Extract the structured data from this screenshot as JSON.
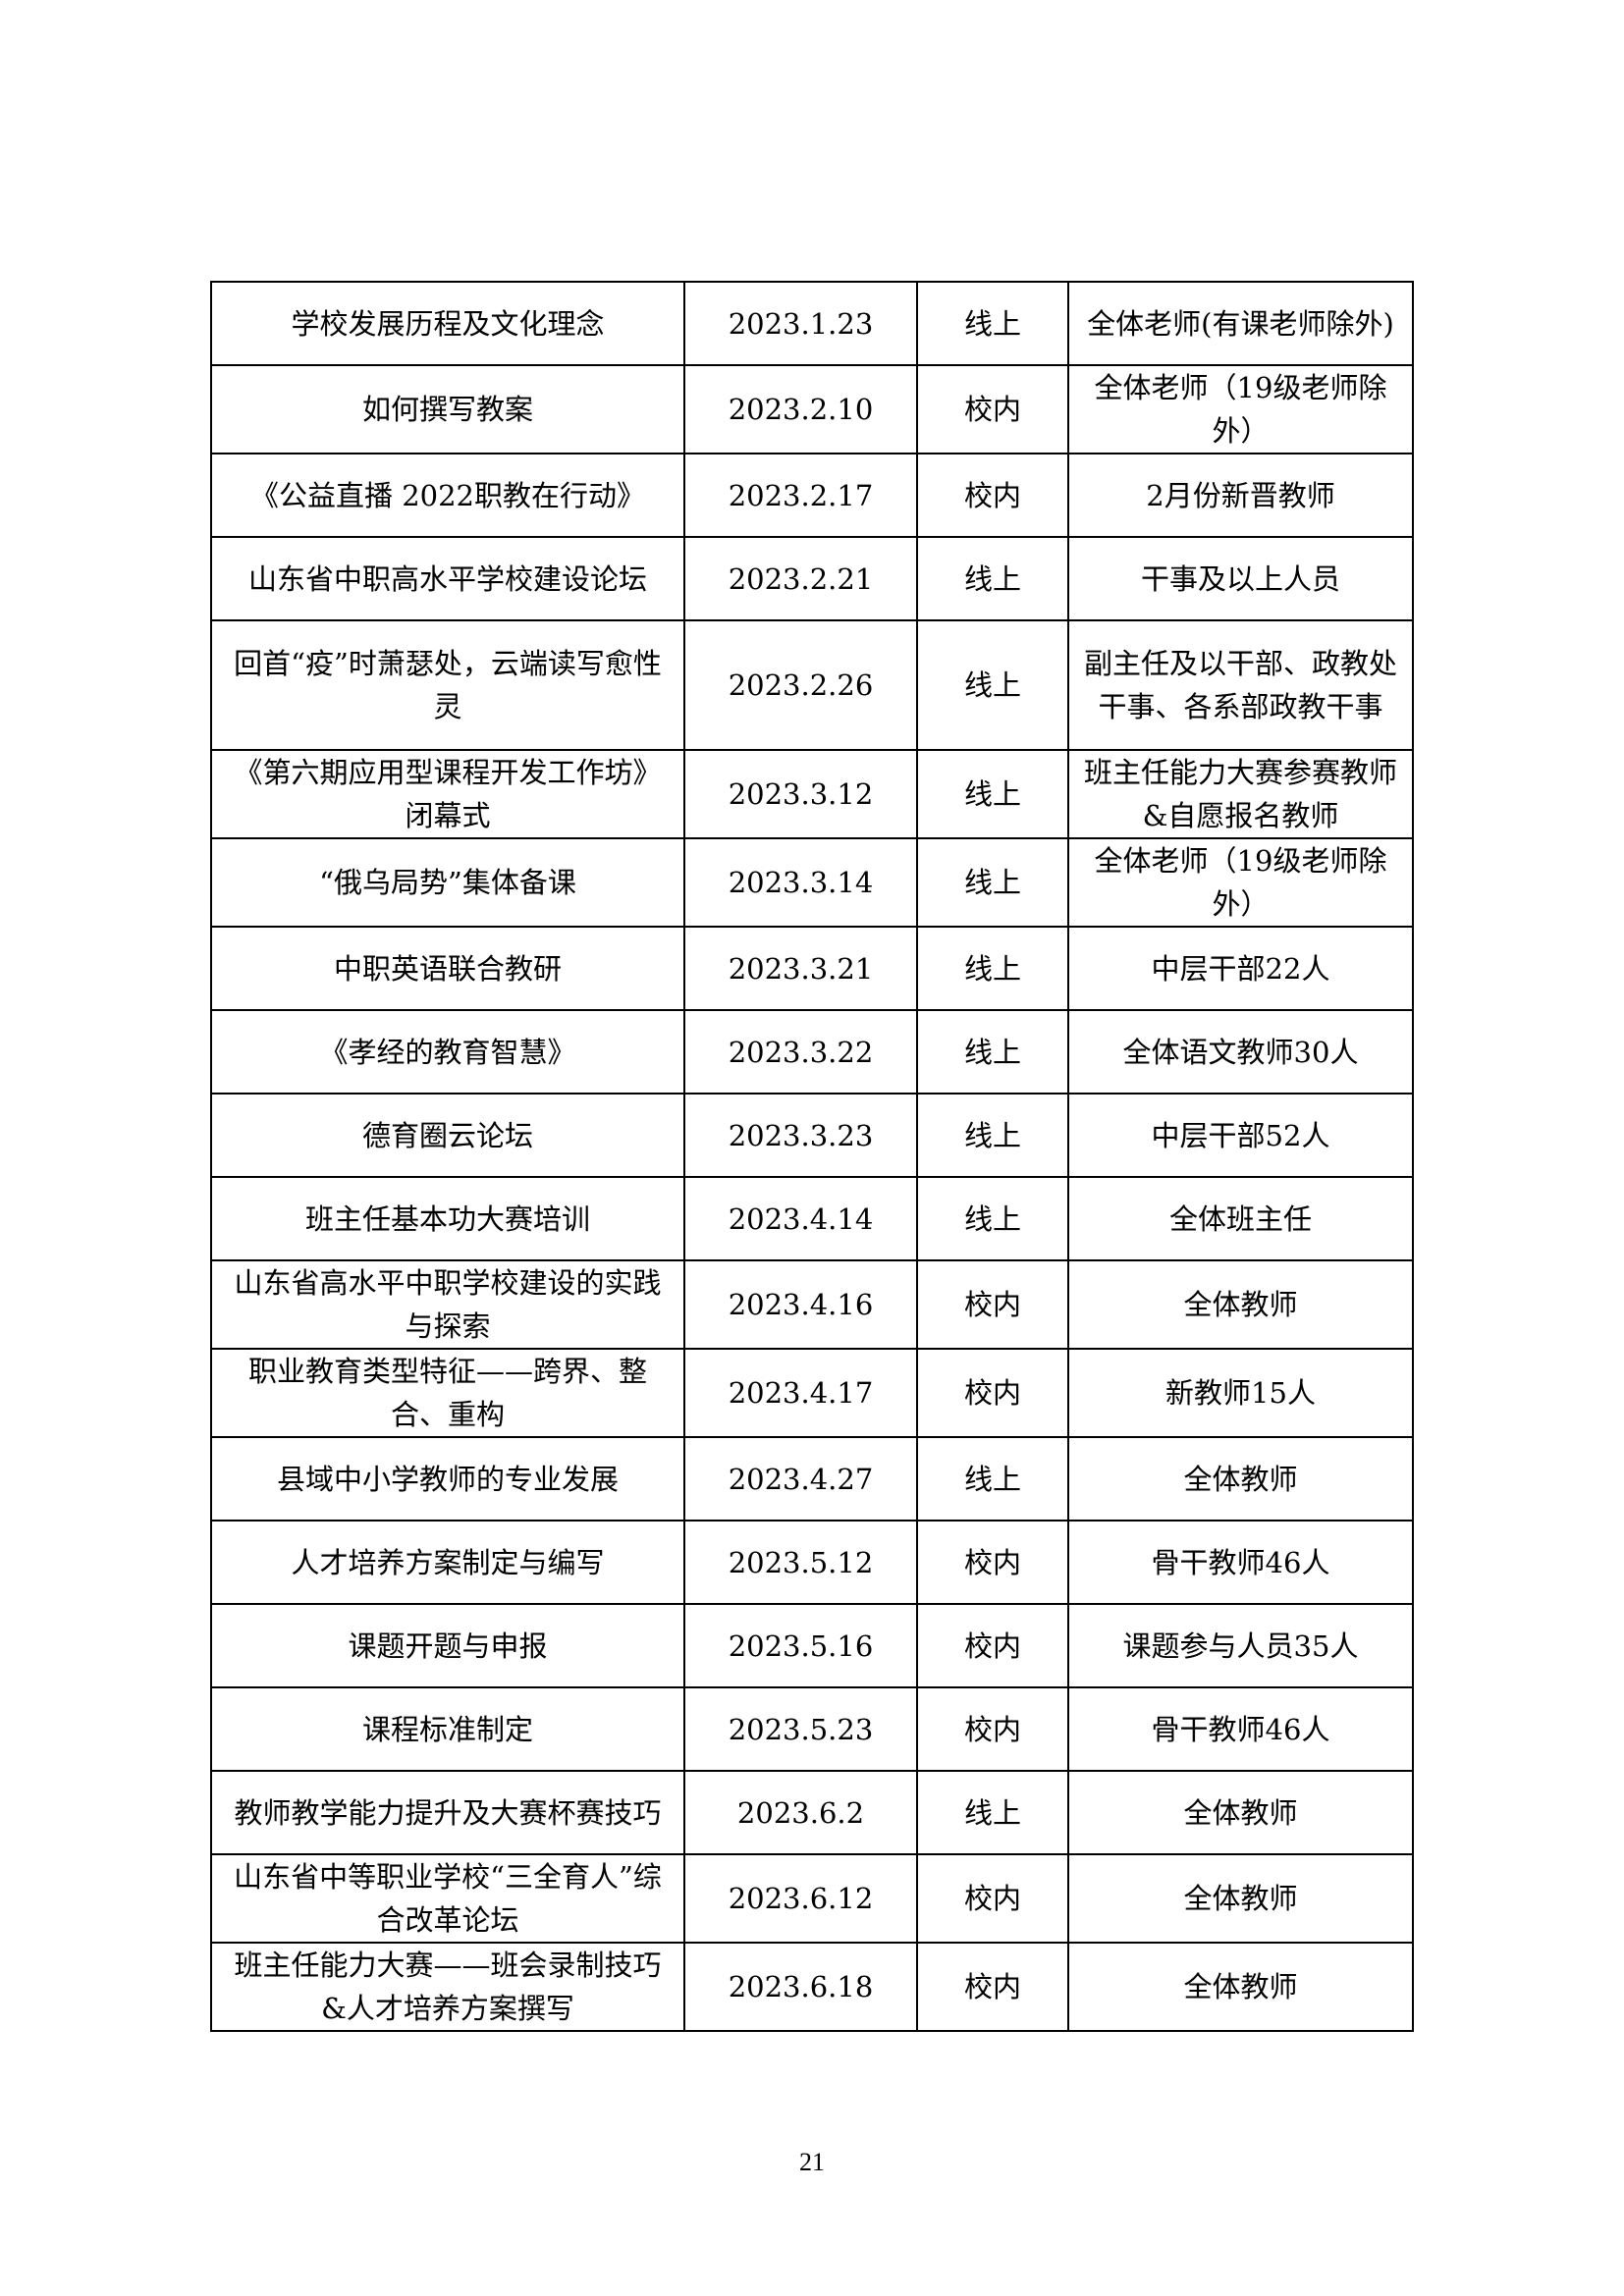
{
  "table": {
    "rows": [
      [
        "学校发展历程及文化理念",
        "2023.1.23",
        "线上",
        "全体老师(有课老师除外)"
      ],
      [
        "如何撰写教案",
        "2023.2.10",
        "校内",
        "全体老师（19级老师除外）"
      ],
      [
        "《公益直播 2022职教在行动》",
        "2023.2.17",
        "校内",
        "2月份新晋教师"
      ],
      [
        "山东省中职高水平学校建设论坛",
        "2023.2.21",
        "线上",
        "干事及以上人员"
      ],
      [
        "回首“疫”时萧瑟处，云端读写愈性灵",
        "2023.2.26",
        "线上",
        "副主任及以干部、政教处干事、各系部政教干事"
      ],
      [
        "《第六期应用型课程开发工作坊》闭幕式",
        "2023.3.12",
        "线上",
        "班主任能力大赛参赛教师&自愿报名教师"
      ],
      [
        "“俄乌局势”集体备课",
        "2023.3.14",
        "线上",
        "全体老师（19级老师除外）"
      ],
      [
        "中职英语联合教研",
        "2023.3.21",
        "线上",
        "中层干部22人"
      ],
      [
        "《孝经的教育智慧》",
        "2023.3.22",
        "线上",
        "全体语文教师30人"
      ],
      [
        "德育圈云论坛",
        "2023.3.23",
        "线上",
        "中层干部52人"
      ],
      [
        "班主任基本功大赛培训",
        "2023.4.14",
        "线上",
        "全体班主任"
      ],
      [
        "山东省高水平中职学校建设的实践与探索",
        "2023.4.16",
        "校内",
        "全体教师"
      ],
      [
        "职业教育类型特征——跨界、整合、重构",
        "2023.4.17",
        "校内",
        "新教师15人"
      ],
      [
        "县域中小学教师的专业发展",
        "2023.4.27",
        "线上",
        "全体教师"
      ],
      [
        "人才培养方案制定与编写",
        "2023.5.12",
        "校内",
        "骨干教师46人"
      ],
      [
        "课题开题与申报",
        "2023.5.16",
        "校内",
        "课题参与人员35人"
      ],
      [
        "课程标准制定",
        "2023.5.23",
        "校内",
        "骨干教师46人"
      ],
      [
        "教师教学能力提升及大赛杯赛技巧",
        "2023.6.2",
        "线上",
        "全体教师"
      ],
      [
        "山东省中等职业学校“三全育人”综合改革论坛",
        "2023.6.12",
        "校内",
        "全体教师"
      ],
      [
        "班主任能力大赛——班会录制技巧&人才培养方案撰写",
        "2023.6.18",
        "校内",
        "全体教师"
      ]
    ]
  },
  "page_number": "21"
}
